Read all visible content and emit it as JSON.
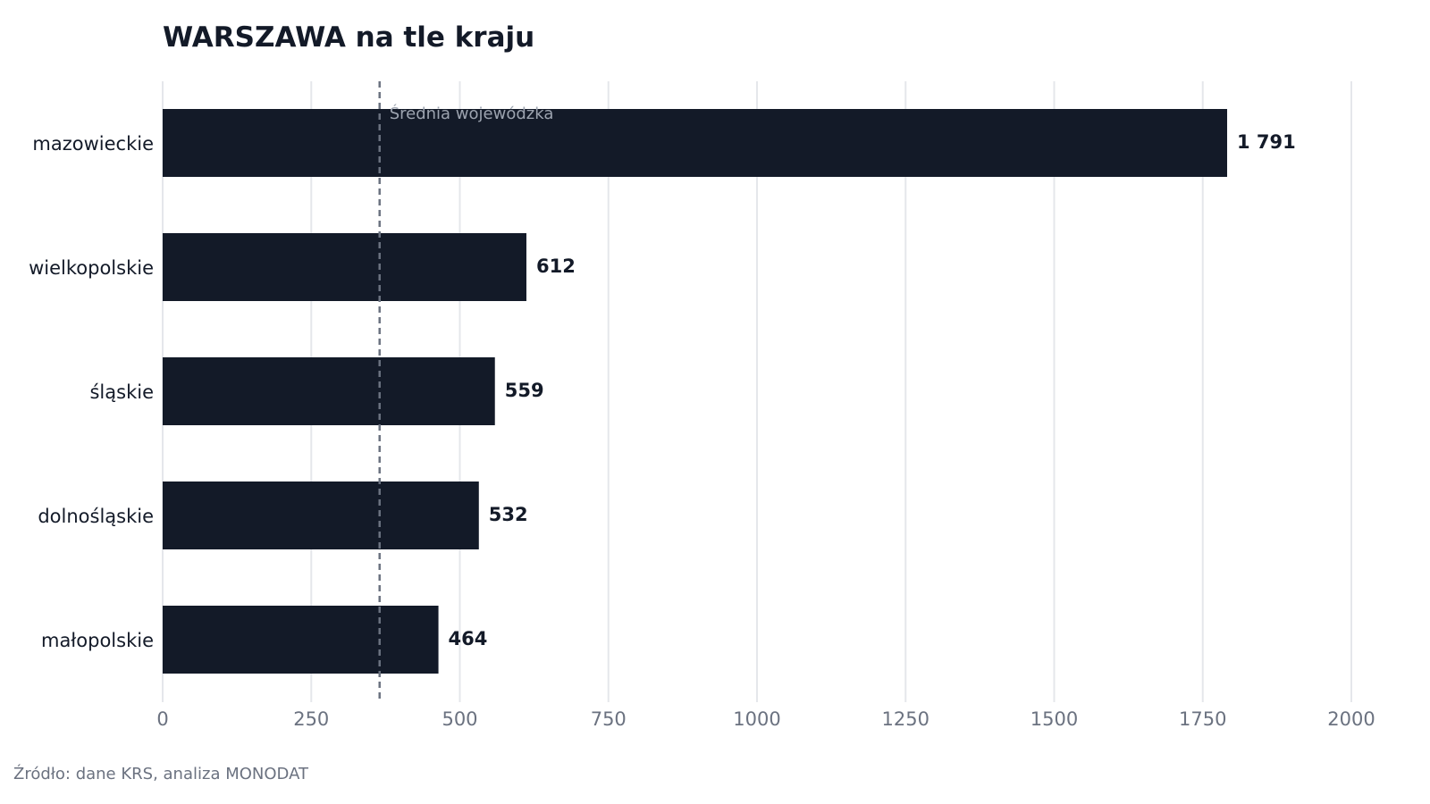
{
  "chart_data": {
    "type": "bar",
    "orientation": "horizontal",
    "title": "WARSZAWA na tle kraju",
    "categories": [
      "mazowieckie",
      "wielkopolskie",
      "śląskie",
      "dolnośląskie",
      "małopolskie"
    ],
    "values": [
      1791,
      612,
      559,
      532,
      464
    ],
    "value_labels": [
      "1 791",
      "612",
      "559",
      "532",
      "464"
    ],
    "xlim": [
      0,
      2000
    ],
    "xticks": [
      0,
      250,
      500,
      750,
      1000,
      1250,
      1500,
      1750,
      2000
    ],
    "xtick_labels": [
      "0",
      "250",
      "500",
      "750",
      "1000",
      "1250",
      "1500",
      "1750",
      "2000"
    ],
    "grid": "vertical",
    "reference_line": {
      "value": 365,
      "label": "Średnia wojewódzka",
      "style": "dashed"
    },
    "colors": {
      "bar": "#131a28",
      "grid": "#e5e7eb",
      "reference": "#6b7280",
      "reference_label": "#9ca3af",
      "tick_label": "#6b7280",
      "text": "#131a28"
    }
  },
  "footer": {
    "source": "Źródło: dane KRS, analiza MONODAT"
  }
}
